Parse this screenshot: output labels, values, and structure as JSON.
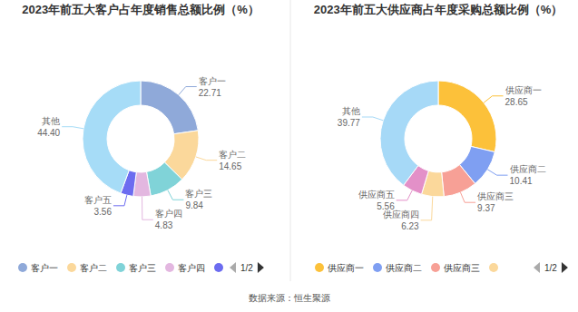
{
  "chart_data": [
    {
      "type": "pie",
      "title": "2023年前五大客户占年度销售总额比例（%）",
      "categories": [
        "客户一",
        "客户二",
        "客户三",
        "客户四",
        "客户五",
        "其他"
      ],
      "values": [
        22.71,
        14.65,
        9.84,
        4.83,
        3.56,
        44.4
      ],
      "value_labels": [
        "22.71",
        "14.65",
        "9.84",
        "4.83",
        "3.56",
        "44.40"
      ],
      "colors": [
        "#8fa9d9",
        "#fbd89b",
        "#80d3d8",
        "#e3b7e0",
        "#6c6cf0",
        "#a6dcf7"
      ],
      "data_labels": true,
      "legend": "bottom"
    },
    {
      "type": "pie",
      "title": "2023年前五大供应商占年度采购总额比例（%）",
      "categories": [
        "供应商一",
        "供应商二",
        "供应商三",
        "供应商四",
        "供应商五",
        "其他"
      ],
      "values": [
        28.65,
        10.41,
        9.37,
        6.23,
        5.56,
        39.77
      ],
      "value_labels": [
        "28.65",
        "10.41",
        "9.37",
        "6.23",
        "5.56",
        "39.77"
      ],
      "colors": [
        "#fcc13a",
        "#7f9ff2",
        "#f7a096",
        "#fbd89b",
        "#e390c8",
        "#a6d9f7"
      ],
      "data_labels": true,
      "legend": "bottom"
    }
  ],
  "legend_pagers": [
    "1/2",
    "1/2"
  ],
  "source": "数据来源：恒生聚源"
}
